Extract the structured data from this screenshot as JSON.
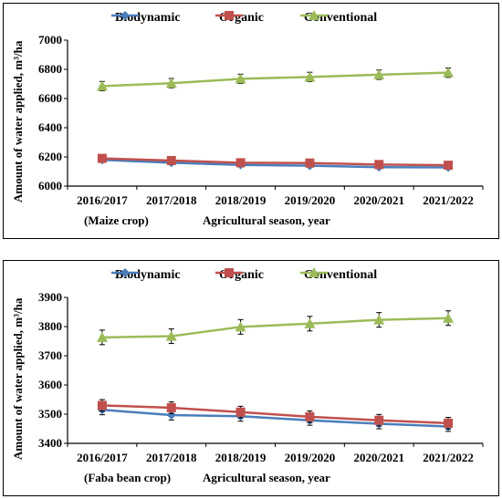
{
  "chart_data": [
    {
      "type": "line",
      "categories": [
        "2016/2017",
        "2017/2018",
        "2018/2019",
        "2019/2020",
        "2020/2021",
        "2021/2022"
      ],
      "ylabel": "Amount of  water applied, m³/ha",
      "xnote_left": "(Maize crop)",
      "xnote_right": "Agricultural season, year",
      "ylim": [
        6000,
        7000
      ],
      "yticks": [
        "6000",
        "6200",
        "6400",
        "6600",
        "6800",
        "7000"
      ],
      "legend": "top",
      "series": [
        {
          "name": "Biodynamic",
          "color": "#4a7ebb",
          "marker": "diamond",
          "values": [
            6180,
            6160,
            6145,
            6140,
            6130,
            6128
          ],
          "err": [
            8,
            8,
            8,
            8,
            8,
            8
          ]
        },
        {
          "name": "Organic",
          "color": "#c0504d",
          "marker": "square",
          "values": [
            6190,
            6175,
            6160,
            6158,
            6148,
            6143
          ],
          "err": [
            8,
            8,
            8,
            8,
            8,
            8
          ]
        },
        {
          "name": "Conventional",
          "color": "#9bbb59",
          "marker": "triangle",
          "values": [
            6685,
            6705,
            6735,
            6748,
            6763,
            6777
          ],
          "err": [
            32,
            32,
            32,
            32,
            32,
            32
          ]
        }
      ]
    },
    {
      "type": "line",
      "categories": [
        "2016/2017",
        "2017/2018",
        "2018/2019",
        "2019/2020",
        "2020/2021",
        "2021/2022"
      ],
      "ylabel": "Amount of  water applied, m³/ha",
      "xnote_left": "(Faba bean crop)",
      "xnote_right": "Agricultural season, year",
      "ylim": [
        3400,
        3900
      ],
      "yticks": [
        "3400",
        "3500",
        "3600",
        "3700",
        "3800",
        "3900"
      ],
      "legend": "top",
      "series": [
        {
          "name": "Biodynamic",
          "color": "#4a7ebb",
          "marker": "diamond",
          "values": [
            3515,
            3497,
            3493,
            3479,
            3467,
            3458
          ],
          "err": [
            17,
            17,
            17,
            17,
            17,
            17
          ]
        },
        {
          "name": "Organic",
          "color": "#c0504d",
          "marker": "square",
          "values": [
            3530,
            3522,
            3507,
            3491,
            3479,
            3469
          ],
          "err": [
            20,
            20,
            20,
            20,
            20,
            20
          ]
        },
        {
          "name": "Conventional",
          "color": "#9bbb59",
          "marker": "triangle",
          "values": [
            3763,
            3767,
            3799,
            3810,
            3823,
            3829
          ],
          "err": [
            25,
            25,
            25,
            25,
            25,
            25
          ]
        }
      ]
    }
  ]
}
